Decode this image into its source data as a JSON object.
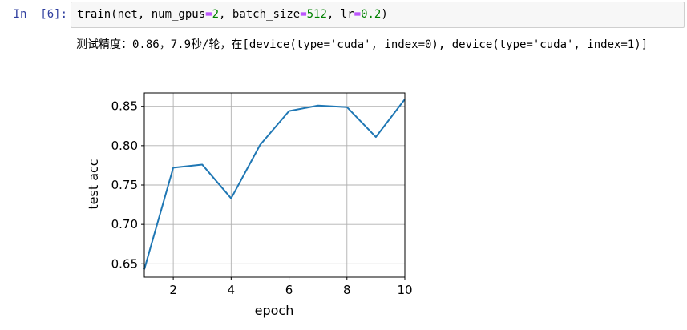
{
  "cell": {
    "prompt": "In  [6]:",
    "code_tokens": [
      {
        "text": "train(net, num_gpus",
        "kind": "plain"
      },
      {
        "text": "=",
        "kind": "op"
      },
      {
        "text": "2",
        "kind": "num"
      },
      {
        "text": ", batch_size",
        "kind": "plain"
      },
      {
        "text": "=",
        "kind": "op"
      },
      {
        "text": "512",
        "kind": "num"
      },
      {
        "text": ", lr",
        "kind": "plain"
      },
      {
        "text": "=",
        "kind": "op"
      },
      {
        "text": "0.2",
        "kind": "num"
      },
      {
        "text": ")",
        "kind": "plain"
      }
    ]
  },
  "output": {
    "text": "测试精度：0.86，7.9秒/轮，在[device(type='cuda', index=0), device(type='cuda', index=1)]"
  },
  "colors": {
    "prompt": "#303f9f",
    "series": "#1f77b4",
    "grid": "#b0b0b0",
    "number": "#008000",
    "operator": "#aa22ff"
  },
  "chart_data": {
    "type": "line",
    "xlabel": "epoch",
    "ylabel": "test acc",
    "xlim": [
      1,
      10
    ],
    "ylim": [
      0.633,
      0.867
    ],
    "xticks": [
      2,
      4,
      6,
      8,
      10
    ],
    "yticks": [
      0.65,
      0.7,
      0.75,
      0.8,
      0.85
    ],
    "ytick_labels": [
      "0.65",
      "0.70",
      "0.75",
      "0.80",
      "0.85"
    ],
    "grid": true,
    "x": [
      1,
      2,
      3,
      4,
      5,
      6,
      7,
      8,
      9,
      10
    ],
    "series": [
      {
        "values": [
          0.643,
          0.772,
          0.776,
          0.733,
          0.801,
          0.844,
          0.851,
          0.849,
          0.811,
          0.859
        ]
      }
    ]
  }
}
